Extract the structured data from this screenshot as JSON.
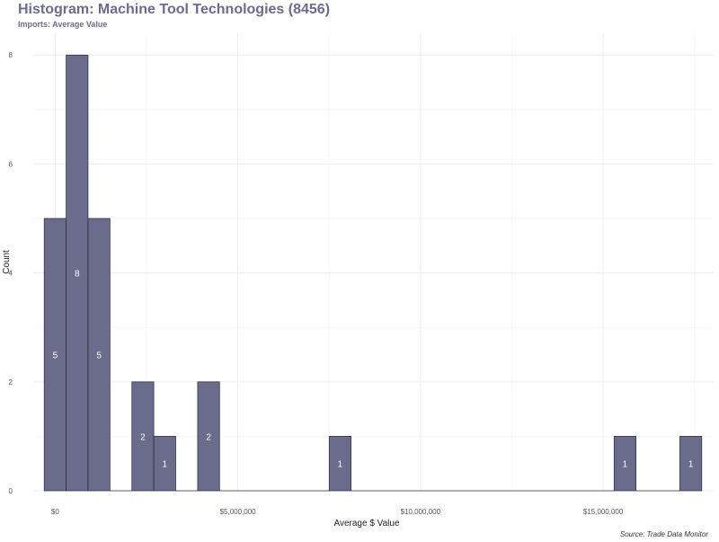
{
  "title": "Histogram: Machine Tool Technologies (8456)",
  "subtitle": "Imports: Average Value",
  "caption": "Source: Trade Data Monitor",
  "colors": {
    "bar_fill": "#6b6b8c",
    "bar_stroke": "#2a2a3a",
    "grid": "#ebebeb",
    "title": "#6b6b8c"
  },
  "chart_data": {
    "type": "bar",
    "title": "Histogram: Machine Tool Technologies (8456)",
    "subtitle": "Imports: Average Value",
    "xlabel": "Average $ Value",
    "ylabel": "Count",
    "xlim": [
      -600000,
      18000000
    ],
    "ylim": [
      0,
      8.4
    ],
    "bin_width": 600000,
    "x_ticks": [
      0,
      5000000,
      10000000,
      15000000
    ],
    "x_tick_labels": [
      "$0",
      "$5,000,000",
      "$10,000,000",
      "$15,000,000"
    ],
    "y_ticks": [
      0,
      2,
      4,
      6,
      8
    ],
    "y_tick_labels": [
      "0",
      "2",
      "4",
      "6",
      "8"
    ],
    "grid": true,
    "bins": [
      {
        "center": 0,
        "count": 5
      },
      {
        "center": 600000,
        "count": 8
      },
      {
        "center": 1200000,
        "count": 5
      },
      {
        "center": 1800000,
        "count": 0
      },
      {
        "center": 2400000,
        "count": 2
      },
      {
        "center": 3000000,
        "count": 1
      },
      {
        "center": 3600000,
        "count": 0
      },
      {
        "center": 4200000,
        "count": 2
      },
      {
        "center": 4800000,
        "count": 0
      },
      {
        "center": 5400000,
        "count": 0
      },
      {
        "center": 6000000,
        "count": 0
      },
      {
        "center": 6600000,
        "count": 0
      },
      {
        "center": 7200000,
        "count": 0
      },
      {
        "center": 7800000,
        "count": 1
      },
      {
        "center": 8400000,
        "count": 0
      },
      {
        "center": 9000000,
        "count": 0
      },
      {
        "center": 9600000,
        "count": 0
      },
      {
        "center": 10200000,
        "count": 0
      },
      {
        "center": 10800000,
        "count": 0
      },
      {
        "center": 11400000,
        "count": 0
      },
      {
        "center": 12000000,
        "count": 0
      },
      {
        "center": 12600000,
        "count": 0
      },
      {
        "center": 13200000,
        "count": 0
      },
      {
        "center": 13800000,
        "count": 0
      },
      {
        "center": 14400000,
        "count": 0
      },
      {
        "center": 15000000,
        "count": 0
      },
      {
        "center": 15600000,
        "count": 1
      },
      {
        "center": 16200000,
        "count": 0
      },
      {
        "center": 16800000,
        "count": 0
      },
      {
        "center": 17400000,
        "count": 1
      }
    ]
  }
}
